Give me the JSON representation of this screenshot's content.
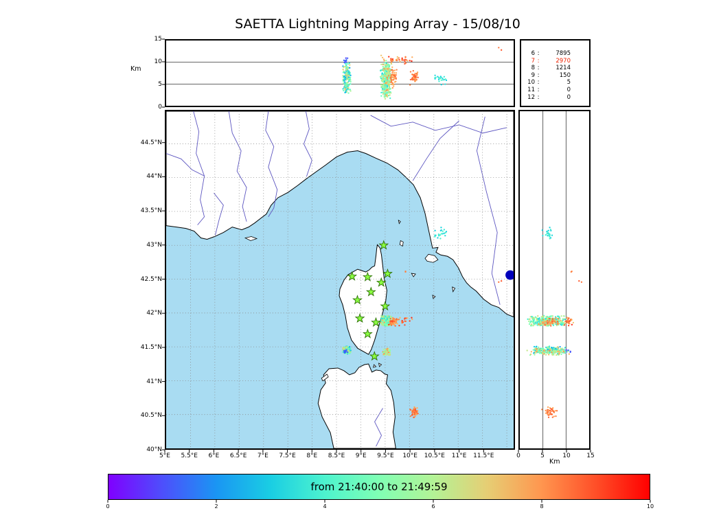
{
  "title": "SAETTA Lightning Mapping Array - 15/08/10",
  "colors": {
    "sea": "#a9dcf2",
    "land": "#ffffff",
    "coast": "#000000",
    "river": "#5b54c0",
    "grid": "#8a8a8a",
    "panel_gridline": "#333333",
    "star_fill": "#8cff42",
    "star_edge": "#2a7000",
    "blue_marker": "#0000bb",
    "legend_highlight": "#ee2200",
    "text": "#000000"
  },
  "chart_data": {
    "type": "scatter",
    "title": "SAETTA Lightning Mapping Array - 15/08/10",
    "layout": "XLMA-style composite: altitude-vs-longitude top panel, longitude-vs-latitude map panel, altitude-vs-latitude side panel, station-count legend, time colorbar below",
    "colormap": "rainbow",
    "grid": "dotted lat/lon graticule every 0.5 degree",
    "time_colorbar": {
      "label": "from 21:40:00 to 21:49:59",
      "ticks": [
        {
          "v": 0,
          "label": "0"
        },
        {
          "v": 2,
          "label": "2"
        },
        {
          "v": 4,
          "label": "4"
        },
        {
          "v": 6,
          "label": "6"
        },
        {
          "v": 8,
          "label": "8"
        },
        {
          "v": 10,
          "label": "10"
        }
      ]
    },
    "axes": {
      "lon_range_deg_e": [
        5,
        12.14
      ],
      "lat_range_deg_n": [
        40,
        44.98
      ],
      "alt_range_km": [
        0,
        15
      ],
      "alt_gridlines_km": [
        5,
        10
      ]
    },
    "axes_ticks": {
      "km_left": "Km",
      "km_bottom": "Km",
      "alt_ticks_left": [
        {
          "v": 15,
          "label": "15"
        },
        {
          "v": 10,
          "label": "10"
        },
        {
          "v": 5,
          "label": "5"
        },
        {
          "v": 0,
          "label": "0"
        }
      ],
      "right_alt_ticks": [
        {
          "v": 0,
          "label": "0"
        },
        {
          "v": 5,
          "label": "5"
        },
        {
          "v": 10,
          "label": "10"
        },
        {
          "v": 15,
          "label": "15"
        }
      ],
      "lat_ticks": [
        {
          "v": 44.5,
          "label": "44.5°N"
        },
        {
          "v": 44,
          "label": "44°N"
        },
        {
          "v": 43.5,
          "label": "43.5°N"
        },
        {
          "v": 43,
          "label": "43°N"
        },
        {
          "v": 42.5,
          "label": "42.5°N"
        },
        {
          "v": 42,
          "label": "42°N"
        },
        {
          "v": 41.5,
          "label": "41.5°N"
        },
        {
          "v": 41,
          "label": "41°N"
        },
        {
          "v": 40.5,
          "label": "40.5°N"
        },
        {
          "v": 40,
          "label": "40°N"
        }
      ],
      "lon_ticks": [
        {
          "v": 5,
          "label": "5°E"
        },
        {
          "v": 5.5,
          "label": "5.5°E"
        },
        {
          "v": 6,
          "label": "6°E"
        },
        {
          "v": 6.5,
          "label": "6.5°E"
        },
        {
          "v": 7,
          "label": "7°E"
        },
        {
          "v": 7.5,
          "label": "7.5°E"
        },
        {
          "v": 8,
          "label": "8°E"
        },
        {
          "v": 8.5,
          "label": "8.5°E"
        },
        {
          "v": 9,
          "label": "9°E"
        },
        {
          "v": 9.5,
          "label": "9.5°E"
        },
        {
          "v": 10,
          "label": "10°E"
        },
        {
          "v": 10.5,
          "label": "10.5°E"
        },
        {
          "v": 11,
          "label": "11°E"
        },
        {
          "v": 11.5,
          "label": "11.5°E"
        }
      ]
    },
    "station_histogram": {
      "rows": [
        {
          "n": "6",
          "count": "7895",
          "highlight": false
        },
        {
          "n": "7",
          "count": "2970",
          "highlight": true
        },
        {
          "n": "8",
          "count": "1214",
          "highlight": false
        },
        {
          "n": "9",
          "count": "150",
          "highlight": false
        },
        {
          "n": "10",
          "count": "5",
          "highlight": false
        },
        {
          "n": "11",
          "count": "0",
          "highlight": false
        },
        {
          "n": "12",
          "count": "0",
          "highlight": false
        }
      ]
    },
    "lma_stations_lon_lat": [
      [
        9.47,
        43.0
      ],
      [
        8.82,
        42.54
      ],
      [
        9.14,
        42.53
      ],
      [
        9.42,
        42.45
      ],
      [
        9.55,
        42.58
      ],
      [
        9.21,
        42.31
      ],
      [
        8.93,
        42.19
      ],
      [
        9.5,
        42.1
      ],
      [
        8.98,
        41.92
      ],
      [
        9.31,
        41.86
      ],
      [
        9.14,
        41.69
      ],
      [
        9.28,
        41.36
      ]
    ],
    "blue_marker_lon_lat": [
      12.07,
      42.56
    ],
    "flash_clusters": [
      {
        "name": "cell-west-41.45N",
        "lon": [
          8.62,
          8.8
        ],
        "lat": [
          41.39,
          41.51
        ],
        "alt_km": [
          2.5,
          10.5
        ],
        "t": [
          0.2,
          0.72
        ],
        "n": 200
      },
      {
        "name": "cell-west-high-blue",
        "lon": [
          8.64,
          8.76
        ],
        "lat": [
          41.4,
          41.48
        ],
        "alt_km": [
          9.8,
          11.2
        ],
        "t": [
          0.06,
          0.16
        ],
        "n": 10
      },
      {
        "name": "cell-main-41.9N",
        "lon": [
          9.4,
          9.64
        ],
        "lat": [
          41.79,
          41.97
        ],
        "alt_km": [
          1.5,
          10.5
        ],
        "t": [
          0.3,
          0.68
        ],
        "n": 330
      },
      {
        "name": "cell-main-orange-fringe",
        "lon": [
          9.58,
          9.75
        ],
        "lat": [
          41.8,
          41.93
        ],
        "alt_km": [
          4.0,
          9.5
        ],
        "t": [
          0.74,
          0.88
        ],
        "n": 60
      },
      {
        "name": "cell-main-high-scatter",
        "lon": [
          9.35,
          10.15
        ],
        "lat": [
          41.8,
          41.96
        ],
        "alt_km": [
          9.5,
          11.8
        ],
        "t": [
          0.7,
          0.95
        ],
        "n": 35
      },
      {
        "name": "cell-se-corsica-41.45N",
        "lon": [
          9.44,
          9.62
        ],
        "lat": [
          41.37,
          41.49
        ],
        "alt_km": [
          1.5,
          11.0
        ],
        "t": [
          0.45,
          0.82
        ],
        "n": 80
      },
      {
        "name": "cell-sardinia-40.5N",
        "lon": [
          10.0,
          10.2
        ],
        "lat": [
          40.44,
          40.62
        ],
        "alt_km": [
          4.5,
          8.5
        ],
        "t": [
          0.76,
          0.9
        ],
        "n": 50
      },
      {
        "name": "cell-ne-43.15N",
        "lon": [
          10.5,
          10.78
        ],
        "lat": [
          43.04,
          43.28
        ],
        "alt_km": [
          4.5,
          7.5
        ],
        "t": [
          0.3,
          0.42
        ],
        "n": 22
      },
      {
        "name": "isolated-42.6N",
        "lon": [
          9.88,
          9.95
        ],
        "lat": [
          42.55,
          42.65
        ],
        "alt_km": [
          11.0,
          12.0
        ],
        "t": [
          0.82,
          0.88
        ],
        "n": 2
      },
      {
        "name": "isolated-east-42.5N",
        "lon": [
          11.8,
          11.95
        ],
        "lat": [
          42.4,
          42.55
        ],
        "alt_km": [
          12.5,
          13.5
        ],
        "t": [
          0.82,
          0.9
        ],
        "n": 2
      }
    ]
  }
}
